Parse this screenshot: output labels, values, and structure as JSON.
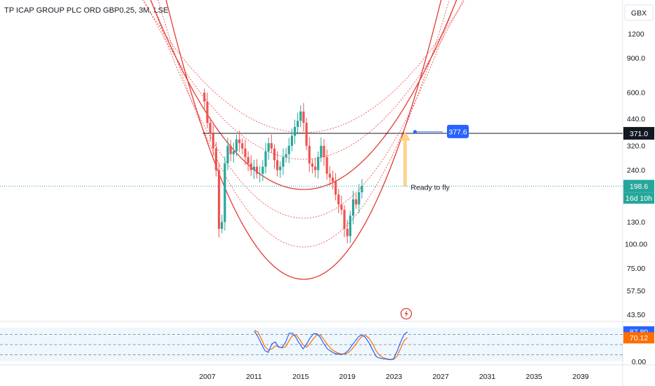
{
  "title": "TP ICAP GROUP PLC ORD GBP0.25, 3M, LSE",
  "chart_data": {
    "type": "candlestick",
    "title": "TP ICAP GROUP PLC ORD GBP0.25, 3M, LSE",
    "currency": "GBX",
    "y_scale": "log",
    "ylim": [
      38,
      2000
    ],
    "xlim": [
      2004.0,
      2042.5
    ],
    "y_ticks": [
      "1200",
      "900.0",
      "600.0",
      "440.0",
      "320.0",
      "240.0",
      "130.0",
      "100.00",
      "75.00",
      "57.50",
      "43.50"
    ],
    "x_ticks": [
      "2007",
      "2011",
      "2015",
      "2019",
      "2023",
      "2027",
      "2031",
      "2035",
      "2039"
    ],
    "price_labels": {
      "resistance": "371.0",
      "last": "198.6",
      "countdown": "16d 10h",
      "target": "377.6"
    },
    "colors": {
      "up": "#26a69a",
      "down": "#ef5350",
      "curves": "#e53935",
      "level": "#131722",
      "target": "#2962ff"
    },
    "annotations": {
      "note": "Ready to fly"
    },
    "closes": [
      540,
      420,
      370,
      310,
      240,
      120,
      130,
      260,
      320,
      290,
      300,
      345,
      330,
      310,
      280,
      260,
      240,
      250,
      230,
      230,
      250,
      300,
      330,
      310,
      270,
      240,
      250,
      280,
      290,
      320,
      360,
      400,
      430,
      480,
      420,
      320,
      260,
      250,
      240,
      280,
      320,
      280,
      230,
      220,
      210,
      180,
      160,
      150,
      120,
      110,
      140,
      170,
      160,
      185,
      198.6
    ],
    "stochastic": {
      "k": [
        90,
        74,
        52,
        32,
        27,
        52,
        58,
        42,
        42,
        58,
        84,
        84,
        70,
        52,
        37,
        52,
        70,
        82,
        82,
        70,
        52,
        37,
        30,
        24,
        22,
        20,
        24,
        33,
        47,
        61,
        74,
        79,
        70,
        54,
        34,
        14,
        10,
        8,
        7,
        5,
        8,
        30,
        57,
        80,
        87.8
      ],
      "d": [
        92,
        88,
        67,
        44,
        34,
        37,
        46,
        44,
        40,
        44,
        62,
        77,
        78,
        66,
        49,
        42,
        54,
        68,
        79,
        78,
        65,
        50,
        38,
        30,
        25,
        22,
        22,
        26,
        36,
        49,
        64,
        75,
        77,
        68,
        52,
        31,
        18,
        11,
        8,
        6,
        6,
        16,
        38,
        62,
        70.12
      ],
      "labels": [
        "87.80",
        "70.12",
        "0.00"
      ]
    }
  }
}
